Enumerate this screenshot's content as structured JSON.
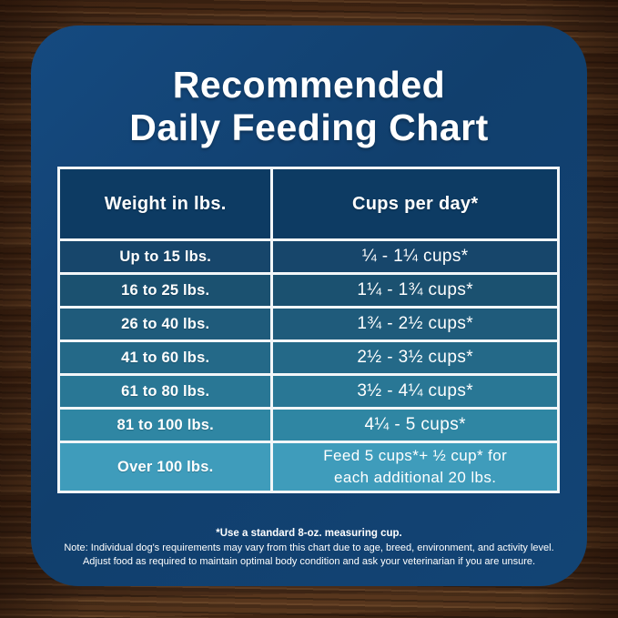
{
  "title": {
    "line1": "Recommended",
    "line2": "Daily Feeding Chart"
  },
  "table": {
    "headers": [
      "Weight in lbs.",
      "Cups per day*"
    ],
    "rows": [
      {
        "weight": "Up to 15 lbs.",
        "cups": "¼ - 1¼ cups*"
      },
      {
        "weight": "16 to 25 lbs.",
        "cups": "1¼ - 1¾  cups*"
      },
      {
        "weight": "26 to 40 lbs.",
        "cups": "1¾ - 2½ cups*"
      },
      {
        "weight": "41 to 60 lbs.",
        "cups": "2½ - 3½ cups*"
      },
      {
        "weight": "61 to 80 lbs.",
        "cups": "3½ - 4¼ cups*"
      },
      {
        "weight": "81 to 100 lbs.",
        "cups": "4¼ - 5 cups*"
      },
      {
        "weight": "Over 100 lbs.",
        "cups": "Feed 5 cups*+ ½ cup* for each additional 20 lbs."
      }
    ],
    "header_bg": "#0d3b63",
    "row_colors": [
      "#17466b",
      "#1b5170",
      "#1f5b7b",
      "#246988",
      "#297795",
      "#2f86a3",
      "#3f9cbb"
    ]
  },
  "footnotes": {
    "line1": "*Use a standard 8-oz. measuring cup.",
    "line2": "Note: Individual dog's requirements may vary from this chart due to age, breed, environment, and activity level.",
    "line3": "Adjust food as required to maintain optimal body condition and ask your veterinarian if you are unsure."
  },
  "colors": {
    "card_background": "#124475",
    "table_border": "#f2f6f8",
    "text": "#ffffff",
    "wood_base": "#4e2f1a"
  },
  "chart_data": {
    "type": "table",
    "title": "Recommended Daily Feeding Chart",
    "columns": [
      "Weight in lbs.",
      "Cups per day*"
    ],
    "rows": [
      [
        "Up to 15 lbs.",
        "¼ - 1¼ cups*"
      ],
      [
        "16 to 25 lbs.",
        "1¼ - 1¾ cups*"
      ],
      [
        "26 to 40 lbs.",
        "1¾ - 2½ cups*"
      ],
      [
        "41 to 60 lbs.",
        "2½ - 3½ cups*"
      ],
      [
        "61 to 80 lbs.",
        "3½ - 4¼ cups*"
      ],
      [
        "81 to 100 lbs.",
        "4¼ - 5 cups*"
      ],
      [
        "Over 100 lbs.",
        "Feed 5 cups*+ ½ cup* for each additional 20 lbs."
      ]
    ],
    "annotations": [
      "*Use a standard 8-oz. measuring cup.",
      "Note: Individual dog's requirements may vary from this chart due to age, breed, environment, and activity level.",
      "Adjust food as required to maintain optimal body condition and ask your veterinarian if you are unsure."
    ],
    "layout_hints": {
      "row_shading": "dark-navy to light-teal vertical gradient",
      "grid": "white 3px borders"
    }
  }
}
